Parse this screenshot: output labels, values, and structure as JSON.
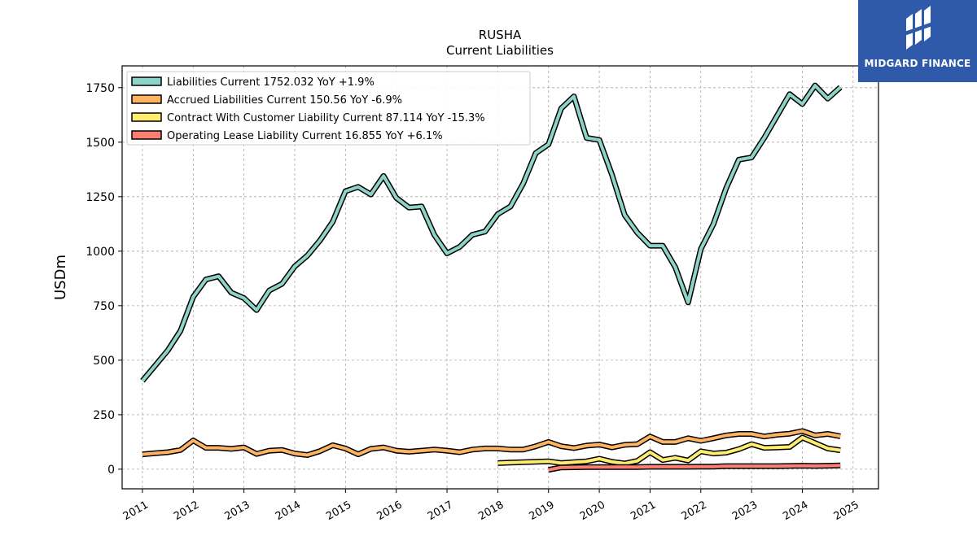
{
  "brand": {
    "name": "MIDGARD FINANCE",
    "bg_color": "#2f5aa9"
  },
  "chart_data": {
    "type": "line",
    "title": "RUSHA",
    "subtitle": "Current  Liabilities",
    "ylabel": "USDm",
    "xlabel": "",
    "ylim": [
      -90,
      1850
    ],
    "xlim": [
      2010.6,
      2025.5
    ],
    "yticks": [
      0,
      250,
      500,
      750,
      1000,
      1250,
      1500,
      1750
    ],
    "xticks": [
      "2011",
      "2012",
      "2013",
      "2014",
      "2015",
      "2016",
      "2017",
      "2018",
      "2019",
      "2020",
      "2021",
      "2022",
      "2023",
      "2024",
      "2025"
    ],
    "grid": true,
    "legend_position": "top-left",
    "series": [
      {
        "name": "Liabilities Current",
        "legend": "Liabilities Current  1752.032 YoY +1.9%",
        "color": "#8dd3c7",
        "x": [
          2011.0,
          2011.25,
          2011.5,
          2011.75,
          2012.0,
          2012.25,
          2012.5,
          2012.75,
          2013.0,
          2013.25,
          2013.5,
          2013.75,
          2014.0,
          2014.25,
          2014.5,
          2014.75,
          2015.0,
          2015.25,
          2015.5,
          2015.75,
          2016.0,
          2016.25,
          2016.5,
          2016.75,
          2017.0,
          2017.25,
          2017.5,
          2017.75,
          2018.0,
          2018.25,
          2018.5,
          2018.75,
          2019.0,
          2019.25,
          2019.5,
          2019.75,
          2020.0,
          2020.25,
          2020.5,
          2020.75,
          2021.0,
          2021.25,
          2021.5,
          2021.75,
          2022.0,
          2022.25,
          2022.5,
          2022.75,
          2023.0,
          2023.25,
          2023.5,
          2023.75,
          2024.0,
          2024.25,
          2024.5,
          2024.75
        ],
        "values": [
          405,
          475,
          545,
          635,
          790,
          870,
          885,
          810,
          785,
          730,
          820,
          850,
          930,
          980,
          1050,
          1135,
          1275,
          1295,
          1260,
          1345,
          1245,
          1200,
          1205,
          1075,
          990,
          1020,
          1075,
          1090,
          1170,
          1205,
          1310,
          1450,
          1490,
          1655,
          1710,
          1520,
          1510,
          1350,
          1165,
          1085,
          1025,
          1025,
          925,
          765,
          1010,
          1125,
          1290,
          1420,
          1430,
          1520,
          1620,
          1720,
          1675,
          1760,
          1700,
          1752
        ]
      },
      {
        "name": "Accrued Liabilities Current",
        "legend": "Accrued Liabilities Current  150.56 YoY -6.9%",
        "color": "#fdb462",
        "x": [
          2011.0,
          2011.25,
          2011.5,
          2011.75,
          2012.0,
          2012.25,
          2012.5,
          2012.75,
          2013.0,
          2013.25,
          2013.5,
          2013.75,
          2014.0,
          2014.25,
          2014.5,
          2014.75,
          2015.0,
          2015.25,
          2015.5,
          2015.75,
          2016.0,
          2016.25,
          2016.5,
          2016.75,
          2017.0,
          2017.25,
          2017.5,
          2017.75,
          2018.0,
          2018.25,
          2018.5,
          2018.75,
          2019.0,
          2019.25,
          2019.5,
          2019.75,
          2020.0,
          2020.25,
          2020.5,
          2020.75,
          2021.0,
          2021.25,
          2021.5,
          2021.75,
          2022.0,
          2022.25,
          2022.5,
          2022.75,
          2023.0,
          2023.25,
          2023.5,
          2023.75,
          2024.0,
          2024.25,
          2024.5,
          2024.75
        ],
        "values": [
          68,
          73,
          78,
          88,
          132,
          98,
          98,
          93,
          100,
          70,
          85,
          88,
          72,
          65,
          83,
          110,
          95,
          68,
          93,
          100,
          85,
          80,
          85,
          90,
          85,
          78,
          90,
          95,
          95,
          90,
          90,
          105,
          125,
          105,
          97,
          108,
          113,
          100,
          112,
          115,
          150,
          125,
          125,
          142,
          130,
          142,
          155,
          162,
          162,
          150,
          158,
          163,
          175,
          155,
          162,
          151
        ]
      },
      {
        "name": "Contract With Customer Liability Current",
        "legend": "Contract With Customer Liability Current  87.114 YoY -15.3%",
        "color": "#ffed6f",
        "x": [
          2018.0,
          2018.25,
          2018.5,
          2018.75,
          2019.0,
          2019.25,
          2019.5,
          2019.75,
          2020.0,
          2020.25,
          2020.5,
          2020.75,
          2021.0,
          2021.25,
          2021.5,
          2021.75,
          2022.0,
          2022.25,
          2022.5,
          2022.75,
          2023.0,
          2023.25,
          2023.5,
          2023.75,
          2024.0,
          2024.25,
          2024.5,
          2024.75
        ],
        "values": [
          28,
          30,
          32,
          34,
          36,
          28,
          32,
          36,
          48,
          34,
          26,
          38,
          78,
          42,
          52,
          40,
          82,
          72,
          76,
          92,
          115,
          98,
          100,
          102,
          145,
          120,
          95,
          87
        ]
      },
      {
        "name": "Operating Lease Liability Current",
        "legend": "Operating Lease Liability Current  16.855 YoY +6.1%",
        "color": "#fb8072",
        "x": [
          2019.0,
          2019.25,
          2019.5,
          2019.75,
          2020.0,
          2020.25,
          2020.5,
          2020.75,
          2021.0,
          2021.25,
          2021.5,
          2021.75,
          2022.0,
          2022.25,
          2022.5,
          2022.75,
          2023.0,
          2023.25,
          2023.5,
          2023.75,
          2024.0,
          2024.25,
          2024.5,
          2024.75
        ],
        "values": [
          -3,
          8,
          9,
          10,
          10,
          10,
          10,
          10,
          11,
          11,
          11,
          11,
          12,
          12,
          14,
          14,
          14,
          14,
          14,
          15,
          16,
          15,
          16,
          17
        ]
      }
    ]
  }
}
